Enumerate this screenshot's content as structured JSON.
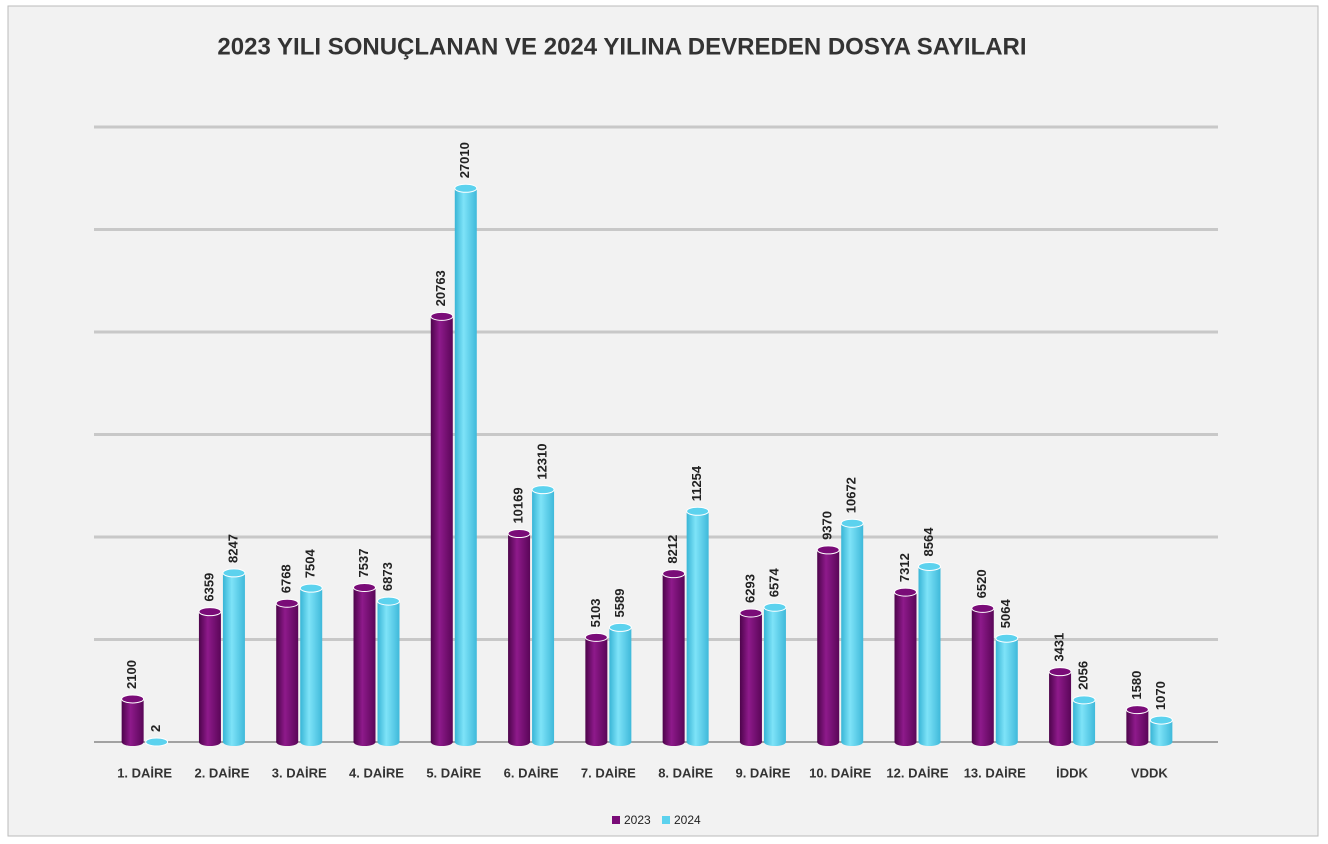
{
  "chart_data": {
    "type": "bar",
    "title": "2023 YILI SONUÇLANAN VE 2024 YILINA DEVREDEN DOSYA SAYILARI",
    "categories": [
      "1. DAİRE",
      "2. DAİRE",
      "3. DAİRE",
      "4. DAİRE",
      "5. DAİRE",
      "6. DAİRE",
      "7. DAİRE",
      "8. DAİRE",
      "9. DAİRE",
      "10. DAİRE",
      "12. DAİRE",
      "13. DAİRE",
      "İDDK",
      "VDDK"
    ],
    "series": [
      {
        "name": "2023",
        "color": "#7a0c78",
        "values": [
          2100,
          6359,
          6768,
          7537,
          20763,
          10169,
          5103,
          8212,
          6293,
          9370,
          7312,
          6520,
          3431,
          1580
        ]
      },
      {
        "name": "2024",
        "color": "#5cd2ee",
        "values": [
          2,
          8247,
          7504,
          6873,
          27010,
          12310,
          5589,
          11254,
          6574,
          10672,
          8564,
          5064,
          2056,
          1070
        ]
      }
    ],
    "ylim": [
      0,
      30000
    ],
    "yticks": [
      0,
      5000,
      10000,
      15000,
      20000,
      25000,
      30000
    ],
    "grid": true,
    "legend": "bottom"
  }
}
